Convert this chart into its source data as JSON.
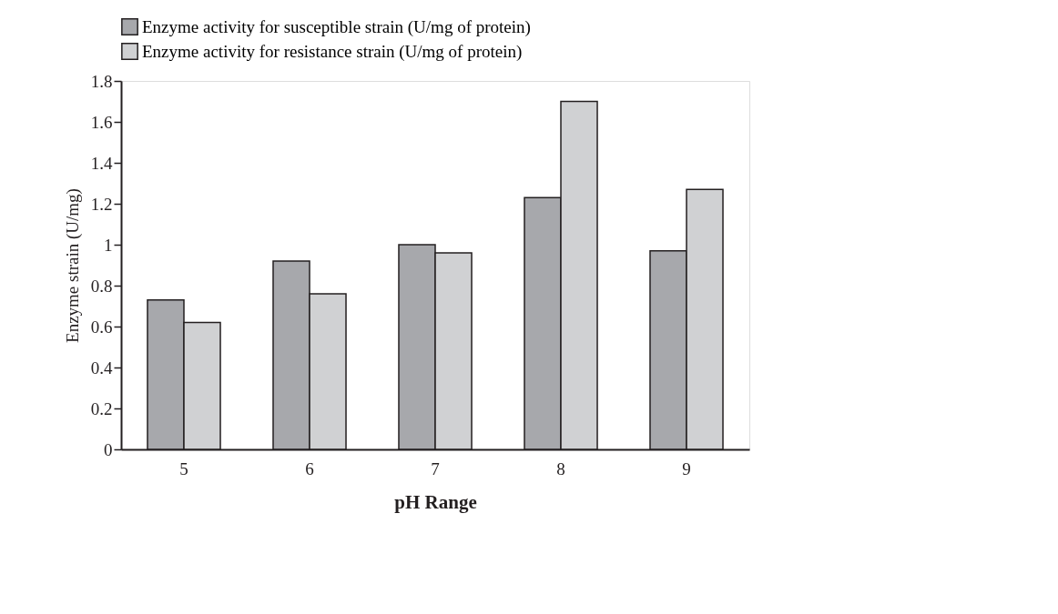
{
  "chart_data": {
    "type": "bar",
    "xlabel": "pH Range",
    "ylabel": "Enzyme strain (U/mg)",
    "categories": [
      "5",
      "6",
      "7",
      "8",
      "9"
    ],
    "series": [
      {
        "name": "Enzyme activity for susceptible strain (U/mg of protein)",
        "color": "#a7a8ac",
        "values": [
          0.73,
          0.92,
          1.0,
          1.23,
          0.97
        ]
      },
      {
        "name": "Enzyme activity for resistance strain (U/mg of protein)",
        "color": "#d0d1d3",
        "values": [
          0.62,
          0.76,
          0.96,
          1.7,
          1.27
        ]
      }
    ],
    "ylim": [
      0,
      1.8
    ],
    "yticks": [
      0,
      0.2,
      0.4,
      0.6,
      0.8,
      1,
      1.2,
      1.4,
      1.6,
      1.8
    ],
    "grid": false,
    "legend": "top"
  }
}
